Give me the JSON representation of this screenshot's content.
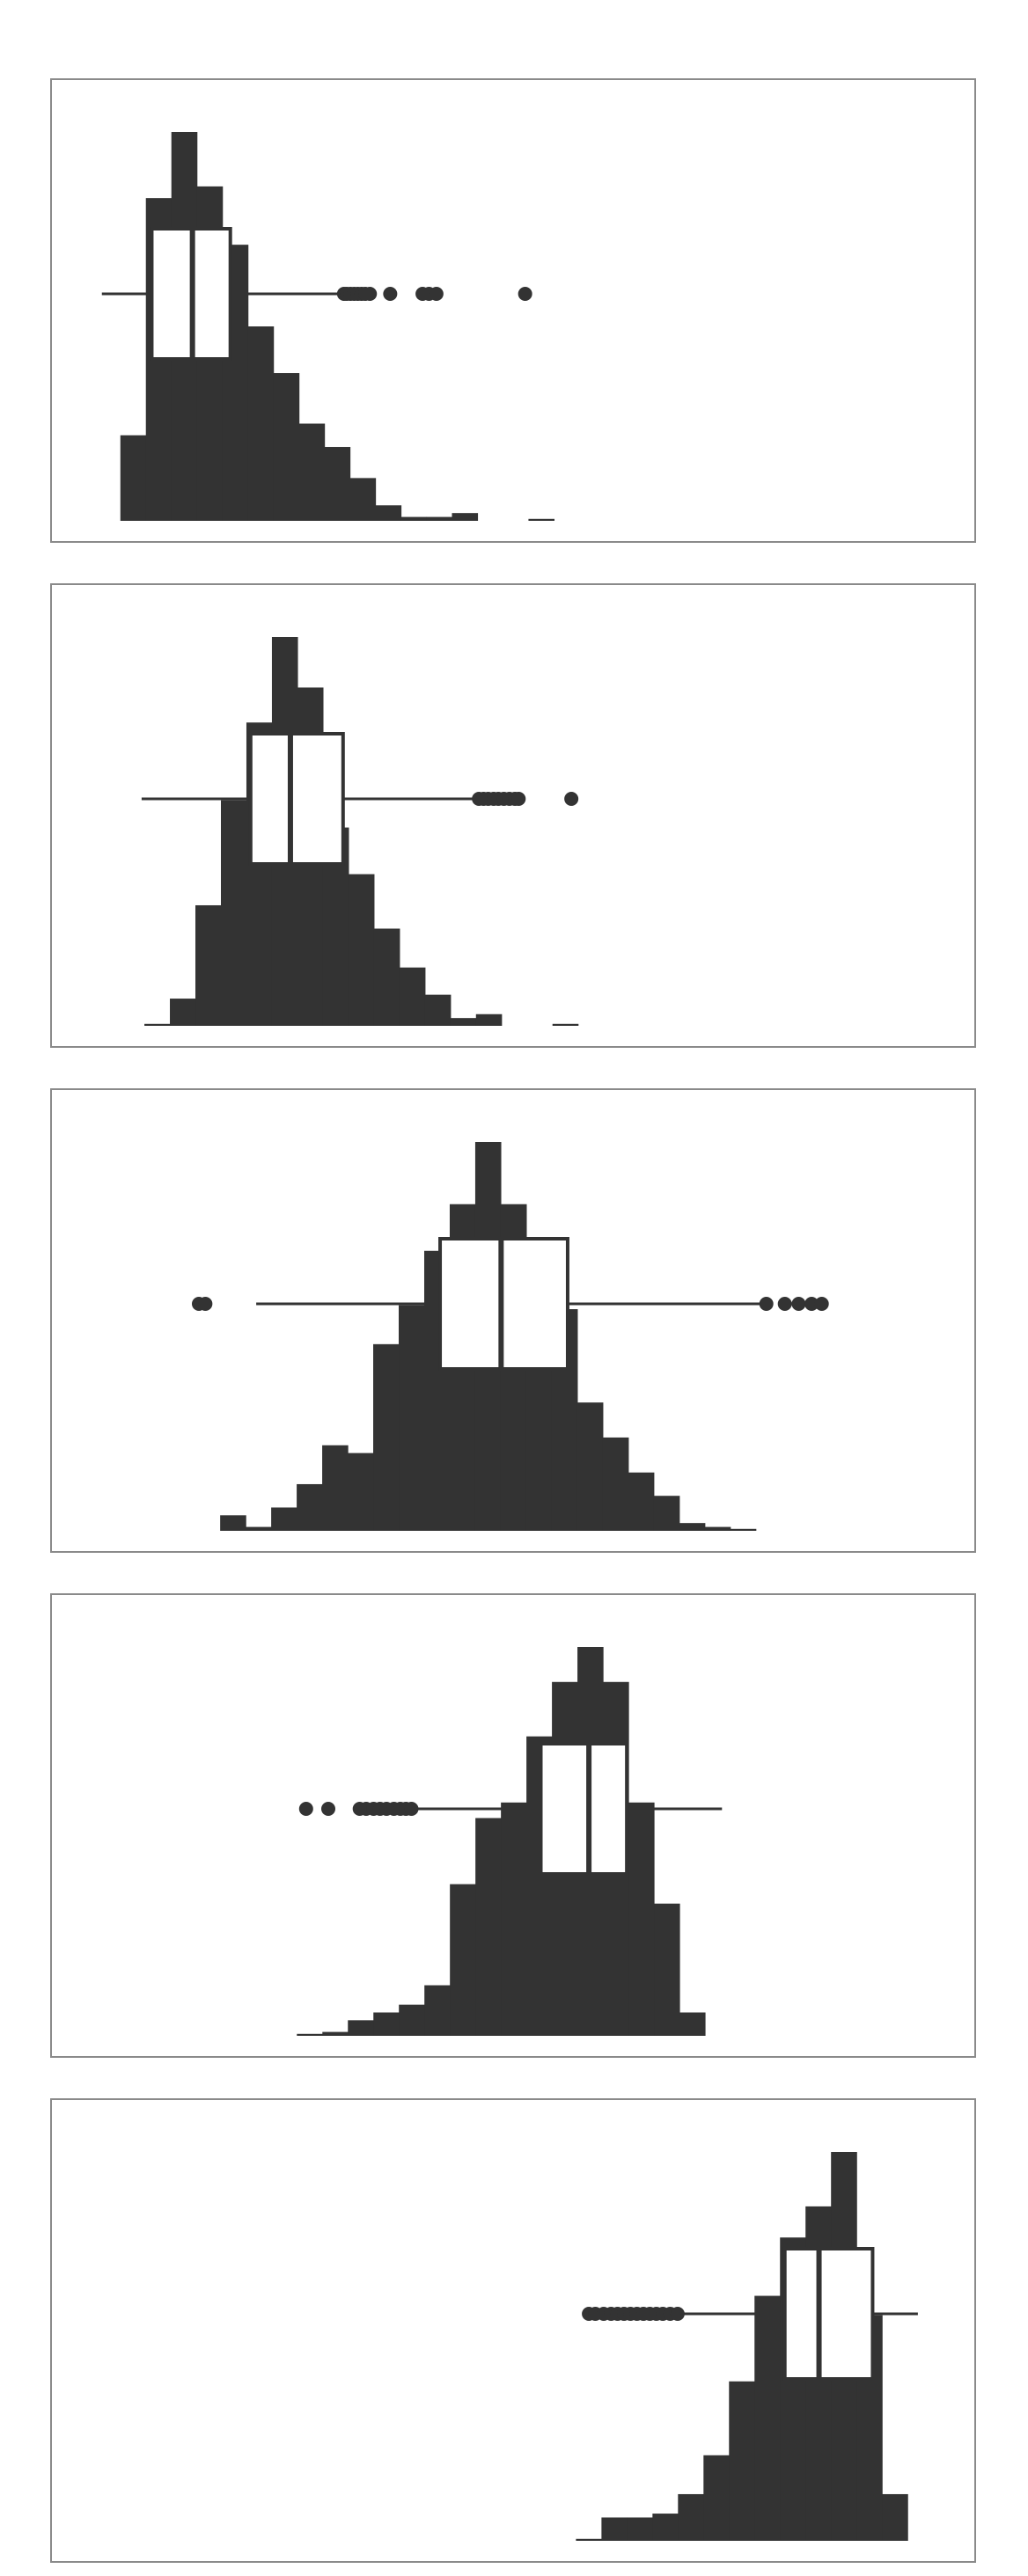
{
  "colors": {
    "background": "#ffffff",
    "frame": "#8a8a8a",
    "bars": "#333333",
    "box_fill": "#ffffff",
    "box_stroke": "#333333"
  },
  "chart_data": [
    {
      "type": "bar",
      "title": "",
      "xlabel": "",
      "ylabel": "",
      "grid": false,
      "xlim": [
        0,
        1
      ],
      "ylim": [
        0,
        100
      ],
      "bins": {
        "start": 0.075,
        "width": 0.0276,
        "counts": [
          22,
          83,
          100,
          86,
          71,
          50,
          38,
          25,
          19,
          11,
          4,
          1,
          1,
          2,
          0,
          0,
          0.5
        ]
      },
      "box": {
        "whisker_low": 0.055,
        "q1": 0.109,
        "median": 0.153,
        "q3": 0.194,
        "whisker_high": 0.313
      },
      "outliers": [
        0.317,
        0.32,
        0.324,
        0.328,
        0.332,
        0.336,
        0.34,
        0.345,
        0.367,
        0.402,
        0.409,
        0.417,
        0.513
      ]
    },
    {
      "type": "bar",
      "title": "",
      "xlabel": "",
      "ylabel": "",
      "grid": false,
      "xlim": [
        0,
        1
      ],
      "ylim": [
        0,
        100
      ],
      "bins": {
        "start": 0.101,
        "width": 0.0276,
        "counts": [
          0.5,
          7,
          31,
          58,
          78,
          100,
          87,
          51,
          39,
          25,
          15,
          8,
          2,
          3,
          0,
          0,
          0.5
        ]
      },
      "box": {
        "whisker_low": 0.098,
        "q1": 0.216,
        "median": 0.259,
        "q3": 0.316,
        "whisker_high": 0.459
      },
      "outliers": [
        0.463,
        0.468,
        0.473,
        0.479,
        0.484,
        0.49,
        0.496,
        0.502,
        0.506,
        0.563
      ]
    },
    {
      "type": "bar",
      "title": "",
      "xlabel": "",
      "ylabel": "",
      "grid": false,
      "xlim": [
        0,
        1
      ],
      "ylim": [
        0,
        100
      ],
      "bins": {
        "start": 0.183,
        "width": 0.0276,
        "counts": [
          4,
          1,
          6,
          12,
          22,
          20,
          48,
          58,
          72,
          84,
          100,
          84,
          74,
          57,
          33,
          24,
          15,
          9,
          2,
          1,
          0.5
        ]
      },
      "box": {
        "whisker_low": 0.222,
        "q1": 0.421,
        "median": 0.487,
        "q3": 0.559,
        "whisker_high": 0.77
      },
      "outliers": [
        0.16,
        0.167,
        0.774,
        0.794,
        0.809,
        0.823,
        0.834
      ]
    },
    {
      "type": "bar",
      "title": "",
      "xlabel": "",
      "ylabel": "",
      "grid": false,
      "xlim": [
        0,
        1
      ],
      "ylim": [
        0,
        100
      ],
      "bins": {
        "start": 0.266,
        "width": 0.0276,
        "counts": [
          0.5,
          1,
          4,
          6,
          8,
          13,
          39,
          56,
          60,
          77,
          91,
          100,
          91,
          60,
          34,
          6
        ]
      },
      "box": {
        "whisker_low": 0.392,
        "q1": 0.53,
        "median": 0.582,
        "q3": 0.623,
        "whisker_high": 0.726
      },
      "outliers": [
        0.276,
        0.3,
        0.334,
        0.341,
        0.349,
        0.356,
        0.363,
        0.371,
        0.378,
        0.384,
        0.39
      ]
    },
    {
      "type": "bar",
      "title": "",
      "xlabel": "",
      "ylabel": "",
      "grid": false,
      "xlim": [
        0,
        1
      ],
      "ylim": [
        0,
        100
      ],
      "bins": {
        "start": 0.568,
        "width": 0.0276,
        "counts": [
          0.5,
          6,
          6,
          7,
          12,
          22,
          41,
          63,
          78,
          86,
          100,
          58,
          12
        ]
      },
      "box": {
        "whisker_low": 0.681,
        "q1": 0.794,
        "median": 0.831,
        "q3": 0.889,
        "whisker_high": 0.938
      },
      "outliers": [
        0.582,
        0.589,
        0.598,
        0.606,
        0.613,
        0.62,
        0.627,
        0.634,
        0.641,
        0.648,
        0.655,
        0.662,
        0.67,
        0.678
      ]
    }
  ]
}
